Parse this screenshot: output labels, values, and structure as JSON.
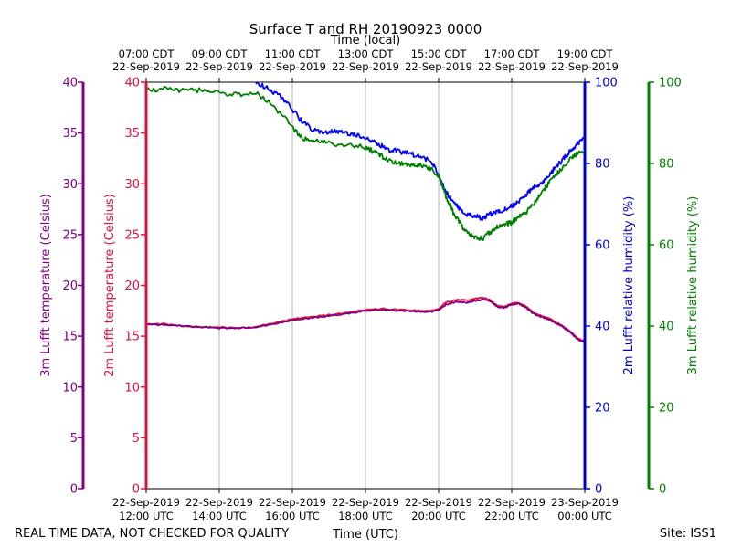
{
  "chart_data": {
    "type": "line",
    "title": "Surface T and RH 20190923 0000",
    "top_axis_label": "Time (local)",
    "xlabel": "Time (UTC)",
    "footer_left": "REAL TIME DATA, NOT CHECKED FOR QUALITY",
    "footer_right": "Site: ISS1",
    "x_range_hours_utc": [
      12,
      24
    ],
    "x_ticks_utc": [
      {
        "h": 12,
        "l1": "22-Sep-2019",
        "l2": "12:00 UTC"
      },
      {
        "h": 14,
        "l1": "22-Sep-2019",
        "l2": "14:00 UTC"
      },
      {
        "h": 16,
        "l1": "22-Sep-2019",
        "l2": "16:00 UTC"
      },
      {
        "h": 18,
        "l1": "22-Sep-2019",
        "l2": "18:00 UTC"
      },
      {
        "h": 20,
        "l1": "22-Sep-2019",
        "l2": "20:00 UTC"
      },
      {
        "h": 22,
        "l1": "22-Sep-2019",
        "l2": "22:00 UTC"
      },
      {
        "h": 24,
        "l1": "23-Sep-2019",
        "l2": "00:00 UTC"
      }
    ],
    "x_ticks_local": [
      {
        "h": 12,
        "l1": "07:00 CDT",
        "l2": "22-Sep-2019"
      },
      {
        "h": 14,
        "l1": "09:00 CDT",
        "l2": "22-Sep-2019"
      },
      {
        "h": 16,
        "l1": "11:00 CDT",
        "l2": "22-Sep-2019"
      },
      {
        "h": 18,
        "l1": "13:00 CDT",
        "l2": "22-Sep-2019"
      },
      {
        "h": 20,
        "l1": "15:00 CDT",
        "l2": "22-Sep-2019"
      },
      {
        "h": 22,
        "l1": "17:00 CDT",
        "l2": "22-Sep-2019"
      },
      {
        "h": 24,
        "l1": "19:00 CDT",
        "l2": "22-Sep-2019"
      }
    ],
    "axes": {
      "temp3m": {
        "label": "3m Lufft temperature (Celsius)",
        "range": [
          0,
          40
        ],
        "ticks": [
          0,
          5,
          10,
          15,
          20,
          25,
          30,
          35,
          40
        ],
        "color": "#800080"
      },
      "temp2m": {
        "label": "2m Lufft temperature (Celsius)",
        "range": [
          0,
          40
        ],
        "ticks": [
          0,
          5,
          10,
          15,
          20,
          25,
          30,
          35,
          40
        ],
        "color": "#dc143c"
      },
      "rh2m": {
        "label": "2m Lufft relative humidity (%)",
        "range": [
          0,
          100
        ],
        "ticks": [
          0,
          20,
          40,
          60,
          80,
          100
        ],
        "color": "#0000cd"
      },
      "rh3m": {
        "label": "3m Lufft relative humidity (%)",
        "range": [
          0,
          100
        ],
        "ticks": [
          0,
          20,
          40,
          60,
          80,
          100
        ],
        "color": "#008000"
      }
    },
    "series": [
      {
        "name": "2m Lufft temperature",
        "axis": "temp2m",
        "color": "#dc143c",
        "x": [
          12.0,
          12.5,
          13.0,
          13.5,
          14.0,
          14.5,
          15.0,
          15.5,
          16.0,
          16.5,
          17.0,
          17.5,
          18.0,
          18.5,
          19.0,
          19.5,
          19.8,
          20.0,
          20.2,
          20.5,
          20.8,
          21.0,
          21.2,
          21.4,
          21.6,
          21.8,
          22.0,
          22.2,
          22.4,
          22.6,
          22.8,
          23.0,
          23.2,
          23.4,
          23.6,
          23.8,
          24.0
        ],
        "y": [
          16.2,
          16.2,
          16.0,
          15.9,
          15.9,
          15.8,
          15.9,
          16.3,
          16.7,
          16.9,
          17.1,
          17.3,
          17.6,
          17.7,
          17.6,
          17.5,
          17.5,
          17.7,
          18.3,
          18.6,
          18.5,
          18.7,
          18.8,
          18.6,
          18.0,
          17.9,
          18.2,
          18.3,
          17.9,
          17.3,
          17.0,
          16.8,
          16.4,
          16.0,
          15.5,
          14.8,
          14.5
        ]
      },
      {
        "name": "3m Lufft temperature",
        "axis": "temp3m",
        "color": "#800080",
        "x": [
          12.0,
          12.5,
          13.0,
          13.5,
          14.0,
          14.5,
          15.0,
          15.5,
          16.0,
          16.5,
          17.0,
          17.5,
          18.0,
          18.5,
          19.0,
          19.5,
          19.8,
          20.0,
          20.2,
          20.5,
          20.8,
          21.0,
          21.2,
          21.4,
          21.6,
          21.8,
          22.0,
          22.2,
          22.4,
          22.6,
          22.8,
          23.0,
          23.2,
          23.4,
          23.6,
          23.8,
          24.0
        ],
        "y": [
          16.2,
          16.1,
          16.0,
          15.9,
          15.8,
          15.8,
          15.9,
          16.2,
          16.6,
          16.8,
          17.0,
          17.2,
          17.5,
          17.6,
          17.5,
          17.4,
          17.4,
          17.6,
          18.1,
          18.4,
          18.3,
          18.5,
          18.6,
          18.5,
          17.9,
          17.8,
          18.1,
          18.2,
          17.8,
          17.2,
          16.9,
          16.7,
          16.3,
          15.9,
          15.4,
          14.7,
          14.4
        ]
      },
      {
        "name": "2m Lufft relative humidity",
        "axis": "rh2m",
        "color": "#0000ff",
        "x": [
          15.0,
          15.3,
          15.6,
          15.9,
          16.2,
          16.5,
          16.8,
          17.1,
          17.4,
          17.7,
          18.0,
          18.3,
          18.6,
          18.9,
          19.2,
          19.5,
          19.8,
          20.0,
          20.2,
          20.4,
          20.6,
          20.8,
          21.0,
          21.2,
          21.4,
          21.6,
          21.8,
          22.0,
          22.2,
          22.4,
          22.6,
          22.8,
          23.0,
          23.2,
          23.4,
          23.6,
          23.8,
          24.0
        ],
        "y": [
          100.0,
          98.5,
          97.0,
          94.5,
          91.0,
          88.5,
          87.5,
          88.0,
          87.5,
          87.0,
          86.5,
          85.0,
          83.5,
          83.0,
          82.5,
          81.5,
          80.5,
          77.0,
          73.0,
          70.5,
          68.5,
          67.5,
          67.0,
          66.5,
          67.5,
          68.0,
          68.5,
          69.5,
          70.5,
          72.5,
          74.0,
          75.0,
          77.0,
          79.0,
          81.0,
          83.0,
          85.0,
          86.0
        ]
      },
      {
        "name": "3m Lufft relative humidity",
        "axis": "rh3m",
        "color": "#008000",
        "x": [
          12.0,
          12.5,
          13.0,
          13.5,
          14.0,
          14.5,
          15.0,
          15.5,
          16.0,
          16.3,
          16.6,
          17.0,
          17.5,
          18.0,
          18.3,
          18.6,
          18.9,
          19.2,
          19.5,
          19.8,
          20.0,
          20.2,
          20.4,
          20.6,
          20.8,
          21.0,
          21.2,
          21.4,
          21.6,
          21.8,
          22.0,
          22.2,
          22.4,
          22.6,
          22.8,
          23.0,
          23.2,
          23.4,
          23.6,
          23.8,
          24.0
        ],
        "y": [
          98.0,
          98.5,
          98.0,
          98.0,
          97.5,
          97.0,
          97.5,
          94.0,
          89.0,
          86.0,
          85.5,
          85.0,
          84.5,
          84.0,
          82.5,
          81.0,
          80.0,
          79.5,
          79.5,
          78.5,
          77.0,
          72.0,
          68.0,
          65.0,
          63.0,
          62.0,
          61.5,
          63.0,
          64.5,
          65.0,
          65.5,
          67.0,
          68.0,
          70.0,
          72.5,
          75.0,
          77.0,
          79.0,
          81.0,
          82.5,
          82.5
        ]
      }
    ]
  }
}
